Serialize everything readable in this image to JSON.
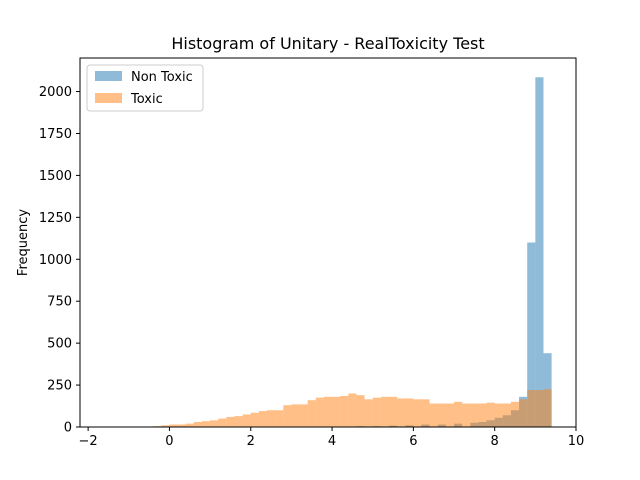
{
  "chart_data": {
    "type": "bar",
    "title": "Histogram of Unitary - RealToxicity Test",
    "xlabel": "",
    "ylabel": "Frequency",
    "xlim": [
      -2.2,
      10
    ],
    "ylim": [
      0,
      2200
    ],
    "xticks": [
      -2,
      0,
      2,
      4,
      6,
      8,
      10
    ],
    "yticks": [
      0,
      250,
      500,
      750,
      1000,
      1250,
      1500,
      1750,
      2000
    ],
    "legend": "top-left",
    "grid": false,
    "bin_width": 0.2,
    "series": [
      {
        "name": "Non Toxic",
        "color": "#1f77b4",
        "alpha": 0.5,
        "bin_starts": [
          4.6,
          5.0,
          5.4,
          5.8,
          6.2,
          6.6,
          7.0,
          7.4,
          7.6,
          7.8,
          8.0,
          8.2,
          8.4,
          8.6,
          8.8,
          9.0,
          9.2
        ],
        "values": [
          5,
          5,
          8,
          10,
          15,
          15,
          20,
          25,
          30,
          40,
          55,
          70,
          100,
          180,
          1100,
          2085,
          440
        ]
      },
      {
        "name": "Toxic",
        "color": "#ff7f0e",
        "alpha": 0.5,
        "bin_starts": [
          -0.6,
          -0.4,
          -0.2,
          0.0,
          0.2,
          0.4,
          0.6,
          0.8,
          1.0,
          1.2,
          1.4,
          1.6,
          1.8,
          2.0,
          2.2,
          2.4,
          2.6,
          2.8,
          3.0,
          3.2,
          3.4,
          3.6,
          3.8,
          4.0,
          4.2,
          4.4,
          4.6,
          4.8,
          5.0,
          5.2,
          5.4,
          5.6,
          5.8,
          6.0,
          6.2,
          6.4,
          6.6,
          6.8,
          7.0,
          7.2,
          7.4,
          7.6,
          7.8,
          8.0,
          8.2,
          8.4,
          8.6,
          8.8,
          9.0,
          9.2
        ],
        "values": [
          3,
          5,
          10,
          15,
          15,
          20,
          30,
          35,
          40,
          50,
          60,
          65,
          75,
          85,
          95,
          100,
          100,
          130,
          135,
          135,
          160,
          175,
          180,
          180,
          185,
          200,
          190,
          165,
          175,
          180,
          180,
          170,
          170,
          165,
          165,
          140,
          140,
          140,
          150,
          140,
          140,
          140,
          145,
          140,
          140,
          150,
          165,
          220,
          220,
          225
        ]
      }
    ]
  }
}
